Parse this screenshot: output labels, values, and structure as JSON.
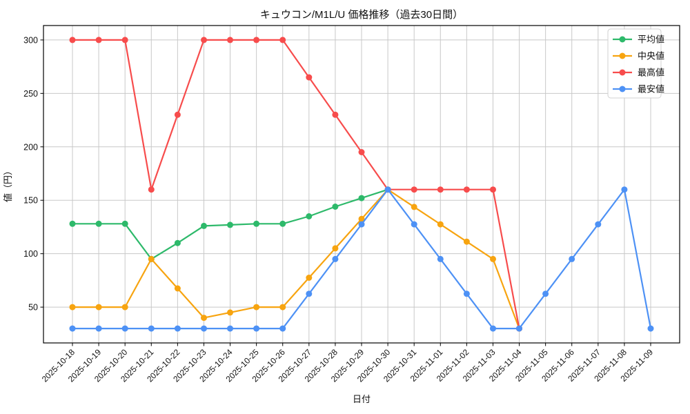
{
  "chart_data": {
    "type": "line",
    "title": "キュウコン/M1L/U 価格推移（過去30日間）",
    "xlabel": "日付",
    "ylabel": "値（円）",
    "x": [
      "2025-10-18",
      "2025-10-19",
      "2025-10-20",
      "2025-10-21",
      "2025-10-22",
      "2025-10-23",
      "2025-10-24",
      "2025-10-25",
      "2025-10-26",
      "2025-10-27",
      "2025-10-28",
      "2025-10-29",
      "2025-10-30",
      "2025-10-31",
      "2025-11-01",
      "2025-11-02",
      "2025-11-03",
      "2025-11-04",
      "2025-11-05",
      "2025-11-06",
      "2025-11-07",
      "2025-11-08",
      "2025-11-09"
    ],
    "series": [
      {
        "key": "average",
        "name": "平均値",
        "color": "#2db96a",
        "values": [
          128,
          128,
          128,
          95,
          110,
          126,
          127,
          128,
          128,
          135,
          144,
          152,
          160,
          null,
          null,
          null,
          null,
          null,
          null,
          null,
          null,
          null,
          null
        ]
      },
      {
        "key": "median",
        "name": "中央値",
        "color": "#f7a410",
        "values": [
          50,
          50,
          50,
          95,
          67.5,
          40,
          45,
          50,
          50,
          77.5,
          105,
          132.5,
          160,
          143.75,
          127.5,
          111.25,
          95,
          30,
          null,
          null,
          null,
          null,
          null
        ]
      },
      {
        "key": "max",
        "name": "最高値",
        "color": "#f74c4c",
        "values": [
          300,
          300,
          300,
          160,
          230,
          300,
          300,
          300,
          300,
          265,
          230,
          195,
          160,
          160,
          160,
          160,
          160,
          30,
          null,
          null,
          null,
          null,
          null
        ]
      },
      {
        "key": "min",
        "name": "最安値",
        "color": "#4d91f5",
        "values": [
          30,
          30,
          30,
          30,
          30,
          30,
          30,
          30,
          30,
          62.5,
          95,
          127.5,
          160,
          127.5,
          95,
          62.5,
          30,
          30,
          62.5,
          95,
          127.5,
          160,
          30
        ]
      }
    ],
    "yticks": [
      50,
      100,
      150,
      200,
      250,
      300
    ],
    "ylim": [
      16.5,
      313.5
    ],
    "grid": true,
    "grid_color": "#c8c8c8",
    "axis_color": "#000000",
    "background": "#ffffff",
    "legend_position": "top-right",
    "marker": "circle"
  }
}
